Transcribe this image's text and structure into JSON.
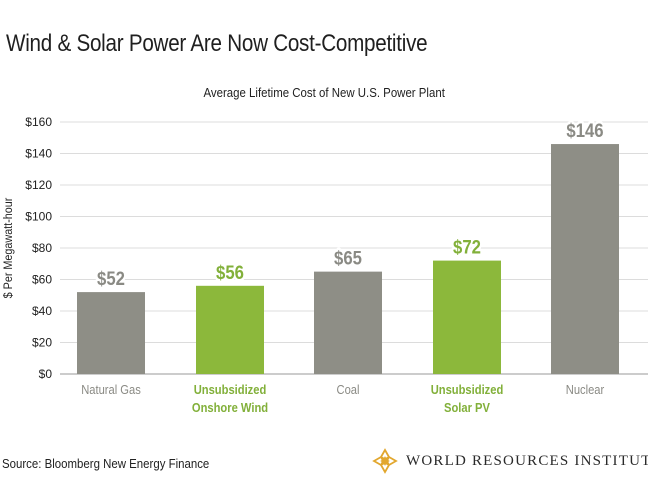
{
  "headline": "Wind & Solar Power Are Now Cost-Competitive",
  "source": "Source: Bloomberg New Energy Finance",
  "brand": {
    "name": "WORLD RESOURCES INSTITUTE",
    "logo_icon": "wri-star-logo-icon",
    "logo_color": "#e2a72e"
  },
  "colors": {
    "gray": "#8e8e86",
    "green": "#8cb83b",
    "gray_label": "#8a8a84",
    "green_label": "#82b03a",
    "grid": "#dcdcdc",
    "tick_text": "#222222"
  },
  "chart_data": {
    "type": "bar",
    "title": "Average Lifetime Cost of New U.S. Power Plant",
    "xlabel": "",
    "ylabel": "$ Per Megawatt-hour",
    "ylim": [
      0,
      160
    ],
    "yticks": [
      0,
      20,
      40,
      60,
      80,
      100,
      120,
      140,
      160
    ],
    "ytick_labels": [
      "$0",
      "$20",
      "$40",
      "$60",
      "$80",
      "$100",
      "$120",
      "$140",
      "$160"
    ],
    "grid": true,
    "categories": [
      [
        "Natural Gas"
      ],
      [
        "Unsubsidized",
        "Onshore Wind"
      ],
      [
        "Coal"
      ],
      [
        "Unsubsidized",
        "Solar PV"
      ],
      [
        "Nuclear"
      ]
    ],
    "values": [
      52,
      56,
      65,
      72,
      146
    ],
    "value_labels": [
      "$52",
      "$56",
      "$65",
      "$72",
      "$146"
    ],
    "highlight": [
      false,
      true,
      false,
      true,
      false
    ]
  }
}
